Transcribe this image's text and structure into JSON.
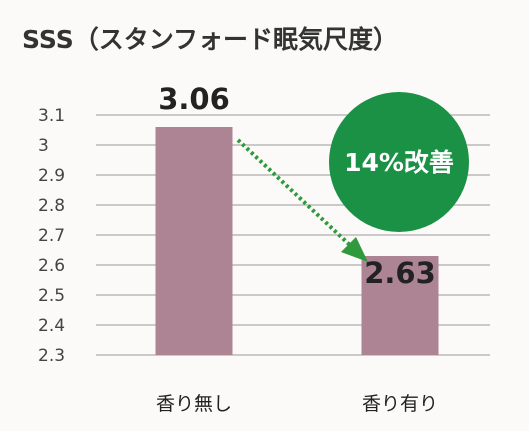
{
  "chart_data": {
    "type": "bar",
    "title": "SSS（スタンフォード眠気尺度）",
    "categories": [
      "香り無し",
      "香り有り"
    ],
    "values": [
      3.06,
      2.63
    ],
    "value_labels": [
      "3.06",
      "2.63"
    ],
    "ylim": [
      2.3,
      3.1
    ],
    "yticks": [
      "2.3",
      "2.4",
      "2.5",
      "2.6",
      "2.7",
      "2.8",
      "2.9",
      "3",
      "3.1"
    ],
    "xlabel": "",
    "ylabel": "",
    "grid": true,
    "bar_color": "#ad8494",
    "annotation": {
      "text": "14%改善",
      "color": "#1a9145"
    },
    "arrow_color": "#2e9a3b"
  }
}
